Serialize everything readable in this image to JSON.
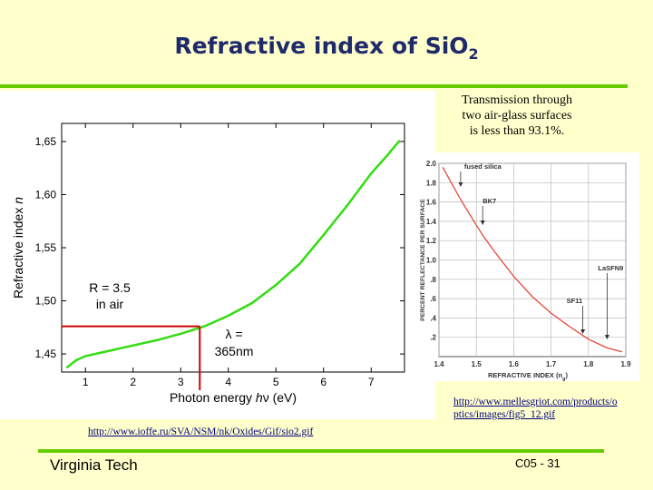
{
  "slide": {
    "title_main": "Refractive index of SiO",
    "title_sub": "2",
    "note_line1": "Transmission through",
    "note_line2": "two air-glass surfaces",
    "note_line3": "is less than 93.1%.",
    "link_left": "http://www.ioffe.ru/SVA/NSM/nk/Oxides/Gif/sio2.gif",
    "link_right_line1": "http://www.mellesgriot.com/products/o",
    "link_right_line2": "ptics/images/fig5_12.gif",
    "footer_left": "Virginia Tech",
    "footer_right": "C05 - 31",
    "colors": {
      "accent_bar": "#66CC00",
      "title": "#1F2A6B",
      "background": "#FFFFCC"
    }
  },
  "chart_data": [
    {
      "type": "line",
      "title": "",
      "xlabel_pre": "Photon energy ",
      "xlabel_italic": "h",
      "xlabel_nu": "ν",
      "xlabel_post": " (eV)",
      "ylabel_pre": "Refractive index ",
      "ylabel_italic": "n",
      "xlim": [
        0.5,
        7.7
      ],
      "ylim": [
        1.433,
        1.667
      ],
      "x_ticks": [
        1,
        2,
        3,
        4,
        5,
        6,
        7
      ],
      "x_tick_labels": [
        "1",
        "2",
        "3",
        "4",
        "5",
        "6",
        "7"
      ],
      "y_ticks": [
        1.45,
        1.5,
        1.55,
        1.6,
        1.65
      ],
      "y_tick_labels": [
        "1,45",
        "1,50",
        "1,55",
        "1,60",
        "1,65"
      ],
      "series": [
        {
          "name": "SiO2",
          "color": "#33DD11",
          "x": [
            0.6,
            0.8,
            1.0,
            1.5,
            2.0,
            2.5,
            3.0,
            3.5,
            4.0,
            4.5,
            5.0,
            5.5,
            6.0,
            6.5,
            7.0,
            7.3,
            7.6
          ],
          "y": [
            1.437,
            1.444,
            1.448,
            1.453,
            1.458,
            1.463,
            1.469,
            1.476,
            1.486,
            1.498,
            1.515,
            1.535,
            1.562,
            1.59,
            1.62,
            1.635,
            1.651
          ]
        }
      ],
      "marker_line": {
        "color": "#CC0000",
        "x": 3.4,
        "y": 1.476
      },
      "annotations": [
        {
          "id": "r",
          "line1": "R = 3.5",
          "line2": "in air"
        },
        {
          "id": "lambda",
          "line1": "λ =",
          "line2": "365nm"
        }
      ]
    },
    {
      "type": "line",
      "title": "",
      "xlabel": "REFRACTIVE INDEX (n",
      "xlabel_sub": "g",
      "xlabel_close": ")",
      "ylabel": "PERCENT REFLECTANCE PER SURFACE",
      "xlim": [
        1.4,
        1.9
      ],
      "ylim": [
        0,
        2.0
      ],
      "x_ticks": [
        1.4,
        1.5,
        1.6,
        1.7,
        1.8,
        1.9
      ],
      "x_tick_labels": [
        "1.4",
        "1.5",
        "1.6",
        "1.7",
        "1.8",
        "1.9"
      ],
      "y_ticks": [
        0.2,
        0.4,
        0.6,
        0.8,
        1.0,
        1.2,
        1.4,
        1.6,
        1.8,
        2.0
      ],
      "y_tick_labels": [
        ".2",
        ".4",
        ".6",
        ".8",
        "1.0",
        "1.2",
        "1.4",
        "1.6",
        "1.8",
        "2.0"
      ],
      "series": [
        {
          "name": "Reflectance",
          "color": "#E8473A",
          "x": [
            1.41,
            1.43,
            1.45,
            1.47,
            1.5,
            1.52,
            1.55,
            1.58,
            1.6,
            1.65,
            1.7,
            1.75,
            1.8,
            1.85,
            1.89
          ],
          "y": [
            1.96,
            1.82,
            1.68,
            1.55,
            1.36,
            1.24,
            1.08,
            0.93,
            0.83,
            0.62,
            0.45,
            0.31,
            0.18,
            0.09,
            0.05
          ]
        }
      ],
      "annotations": [
        {
          "label": "fused silica",
          "x": 1.458
        },
        {
          "label": "BK7",
          "x": 1.517
        },
        {
          "label": "SF11",
          "x": 1.785
        },
        {
          "label": "LaSFN9",
          "x": 1.85
        }
      ]
    }
  ]
}
